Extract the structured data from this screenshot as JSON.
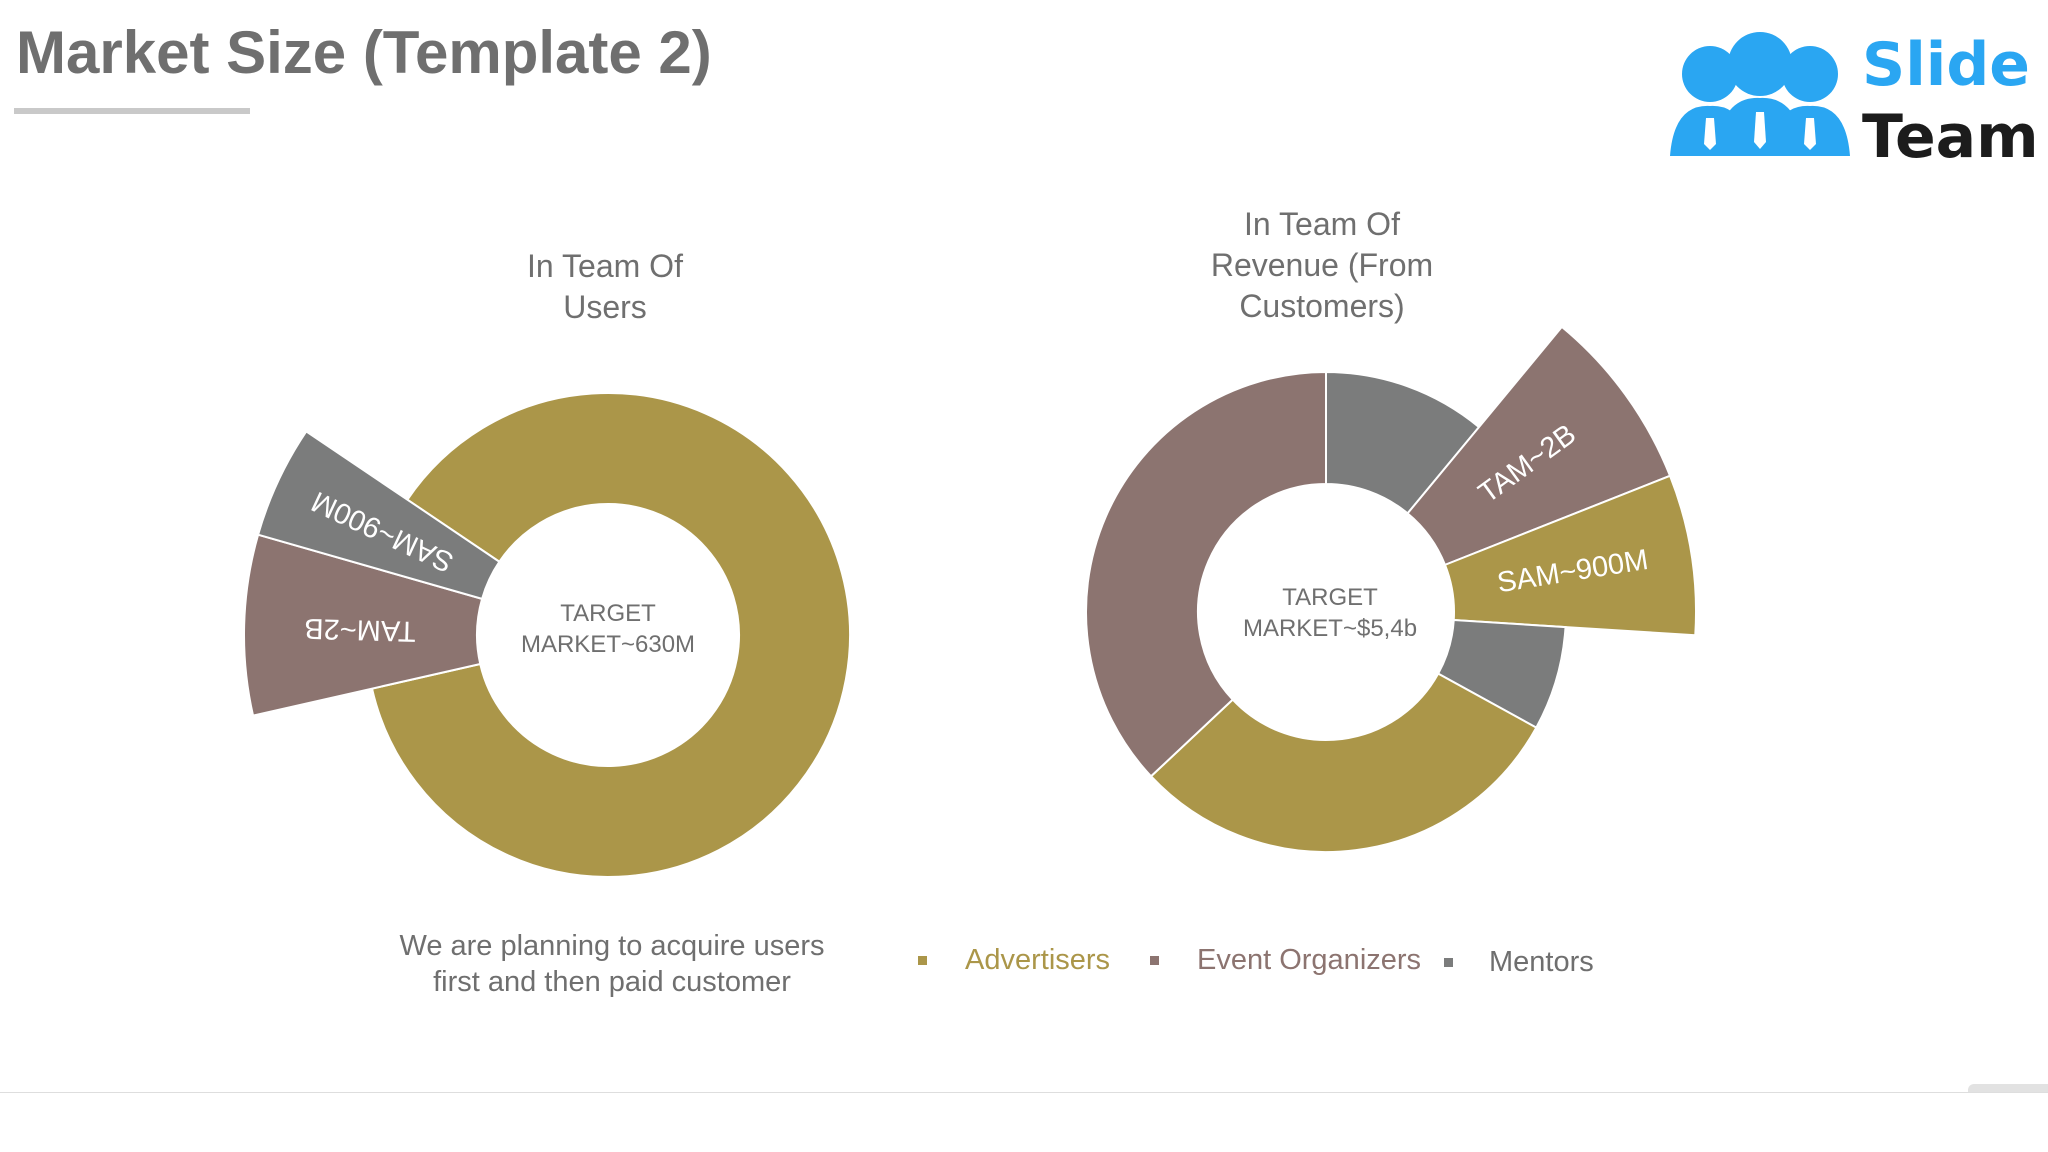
{
  "title": "Market Size (Template 2)",
  "logo": {
    "word1": "Slide",
    "word2": "Team",
    "icon": "slideteam-people-logo-icon"
  },
  "colors": {
    "advertisers": "#ab9649",
    "event_organizers": "#8c7470",
    "mentors": "#7b7c7c",
    "text": "#6f6f6f"
  },
  "caption": {
    "line1": "We are planning to acquire users",
    "line2": "first and then paid customer"
  },
  "legend": [
    {
      "label": "Advertisers",
      "color": "#ab9649",
      "text_color": "#ab9649"
    },
    {
      "label": "Event Organizers",
      "color": "#8c7470",
      "text_color": "#8c7470"
    },
    {
      "label": "Mentors",
      "color": "#7b7c7c",
      "text_color": "#6f6f6f"
    }
  ],
  "chart_data": [
    {
      "type": "pie",
      "variant": "exploded-donut",
      "title_lines": [
        "In Team Of",
        "Users"
      ],
      "center_label_lines": [
        "TARGET",
        "MARKET~630M"
      ],
      "slices": [
        {
          "name": "Advertisers",
          "value": 87,
          "label": ""
        },
        {
          "name": "Event Organizers",
          "value": 8,
          "label": "TAM~2B",
          "exploded": true
        },
        {
          "name": "Mentors",
          "value": 5,
          "label": "SAM~900M",
          "exploded": true
        }
      ]
    },
    {
      "type": "pie",
      "variant": "exploded-donut",
      "title_lines": [
        "In Team Of",
        "Revenue (From",
        "Customers)"
      ],
      "center_label_lines": [
        "TARGET",
        "MARKET~$5,4b"
      ],
      "slices": [
        {
          "name": "Mentors",
          "value": 11,
          "label": ""
        },
        {
          "name": "Event Organizers",
          "value": 8,
          "label": "TAM~2B",
          "exploded": true
        },
        {
          "name": "Advertisers",
          "value": 7,
          "label": "SAM~900M",
          "exploded": true
        },
        {
          "name": "Mentors",
          "value": 7,
          "label": ""
        },
        {
          "name": "Advertisers",
          "value": 30,
          "label": ""
        },
        {
          "name": "Event Organizers",
          "value": 37,
          "label": ""
        }
      ]
    }
  ]
}
